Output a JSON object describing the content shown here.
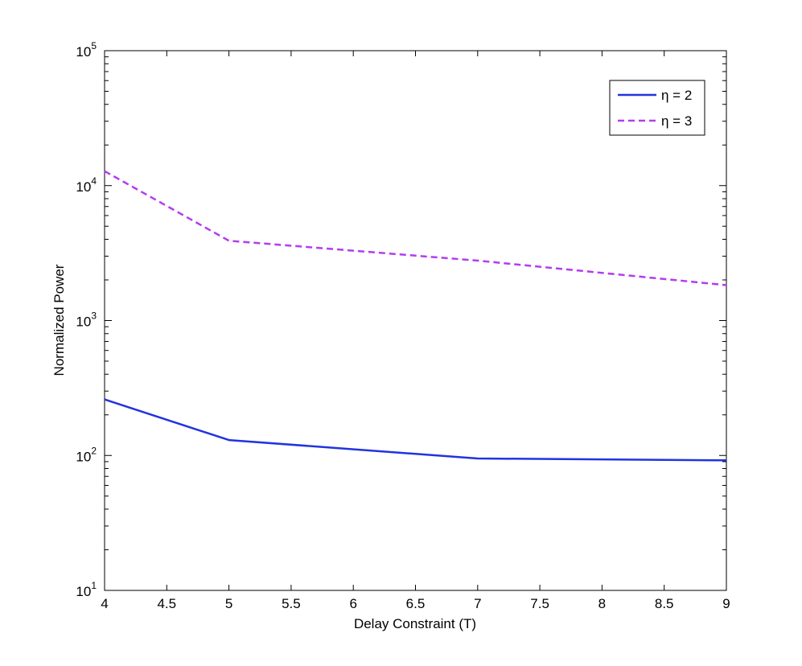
{
  "chart_data": {
    "type": "line",
    "title": "",
    "xlabel": "Delay Constraint (T)",
    "ylabel": "Normalized Power",
    "xlim": [
      4,
      9
    ],
    "ylim": [
      10,
      100000
    ],
    "yscale": "log",
    "x_ticks": [
      4,
      4.5,
      5,
      5.5,
      6,
      6.5,
      7,
      7.5,
      8,
      8.5,
      9
    ],
    "x_tick_labels": [
      "4",
      "4.5",
      "5",
      "5.5",
      "6",
      "6.5",
      "7",
      "7.5",
      "8",
      "8.5",
      "9"
    ],
    "y_ticks": [
      {
        "base": "10",
        "exp": "1",
        "value": 10
      },
      {
        "base": "10",
        "exp": "2",
        "value": 100
      },
      {
        "base": "10",
        "exp": "3",
        "value": 1000
      },
      {
        "base": "10",
        "exp": "4",
        "value": 10000
      },
      {
        "base": "10",
        "exp": "5",
        "value": 100000
      }
    ],
    "grid": false,
    "legend_position": "top-right",
    "series": [
      {
        "name": "η = 2",
        "color": "#2233e0",
        "style": "solid",
        "x": [
          4,
          5,
          7,
          9
        ],
        "y": [
          260,
          130,
          95,
          92
        ]
      },
      {
        "name": "η = 3",
        "color": "#b33cf0",
        "style": "dashed",
        "x": [
          4,
          5,
          7,
          9
        ],
        "y": [
          12800,
          3900,
          2780,
          1830
        ]
      }
    ]
  }
}
